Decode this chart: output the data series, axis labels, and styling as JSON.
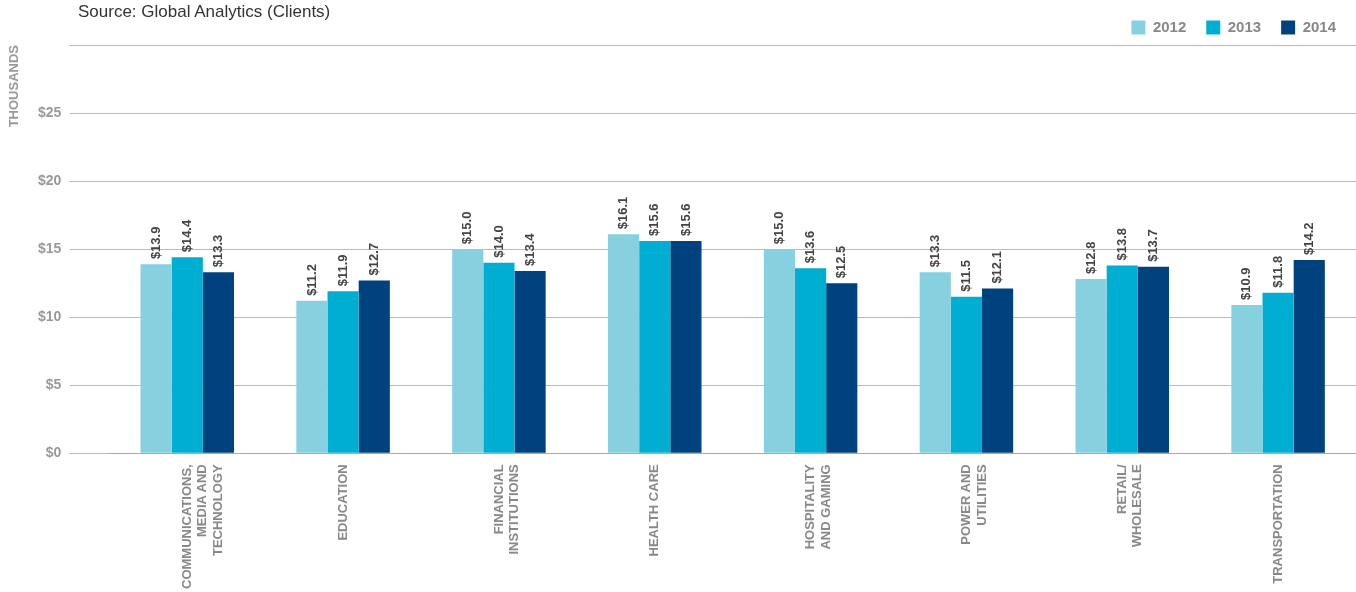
{
  "chart_data": {
    "type": "bar",
    "annotations": [
      "Source: Global Analytics (Clients)"
    ],
    "ylabel": "THOUSANDS",
    "categories": [
      "COMMUNICATIONS,\nMEDIA AND\nTECHNOLOGY",
      "EDUCATION",
      "FINANCIAL\nINSTITUTIONS",
      "HEALTH CARE",
      "HOSPITALITY\nAND GAMING",
      "POWER AND\nUTILITIES",
      "RETAIL/\nWHOLESALE",
      "TRANSPORTATION"
    ],
    "series": [
      {
        "name": "2012",
        "color": "#86d0e0",
        "values": [
          13.9,
          11.2,
          15.0,
          16.1,
          15.0,
          13.3,
          12.8,
          10.9
        ],
        "value_labels": [
          "$13.9",
          "$11.2",
          "$15.0",
          "$16.1",
          "$15.0",
          "$13.3",
          "$12.8",
          "$10.9"
        ]
      },
      {
        "name": "2013",
        "color": "#00aed1",
        "values": [
          14.4,
          11.9,
          14.0,
          15.6,
          13.6,
          11.5,
          13.8,
          11.8
        ],
        "value_labels": [
          "$14.4",
          "$11.9",
          "$14.0",
          "$15.6",
          "$13.6",
          "$11.5",
          "$13.8",
          "$11.8"
        ]
      },
      {
        "name": "2014",
        "color": "#00427d",
        "values": [
          13.3,
          12.7,
          13.4,
          15.6,
          12.5,
          12.1,
          13.7,
          14.2
        ],
        "value_labels": [
          "$13.3",
          "$12.7",
          "$13.4",
          "$15.6",
          "$12.5",
          "$12.1",
          "$13.7",
          "$14.2"
        ]
      }
    ],
    "ylim": [
      0,
      30
    ],
    "yticks": [
      {
        "value": 0,
        "label": "$0"
      },
      {
        "value": 5,
        "label": "$5"
      },
      {
        "value": 10,
        "label": "$10"
      },
      {
        "value": 15,
        "label": "$15"
      },
      {
        "value": 20,
        "label": "$20"
      },
      {
        "value": 25,
        "label": "$25"
      },
      {
        "value": 30,
        "label": null
      }
    ],
    "grid": "y",
    "legend": "top right"
  }
}
